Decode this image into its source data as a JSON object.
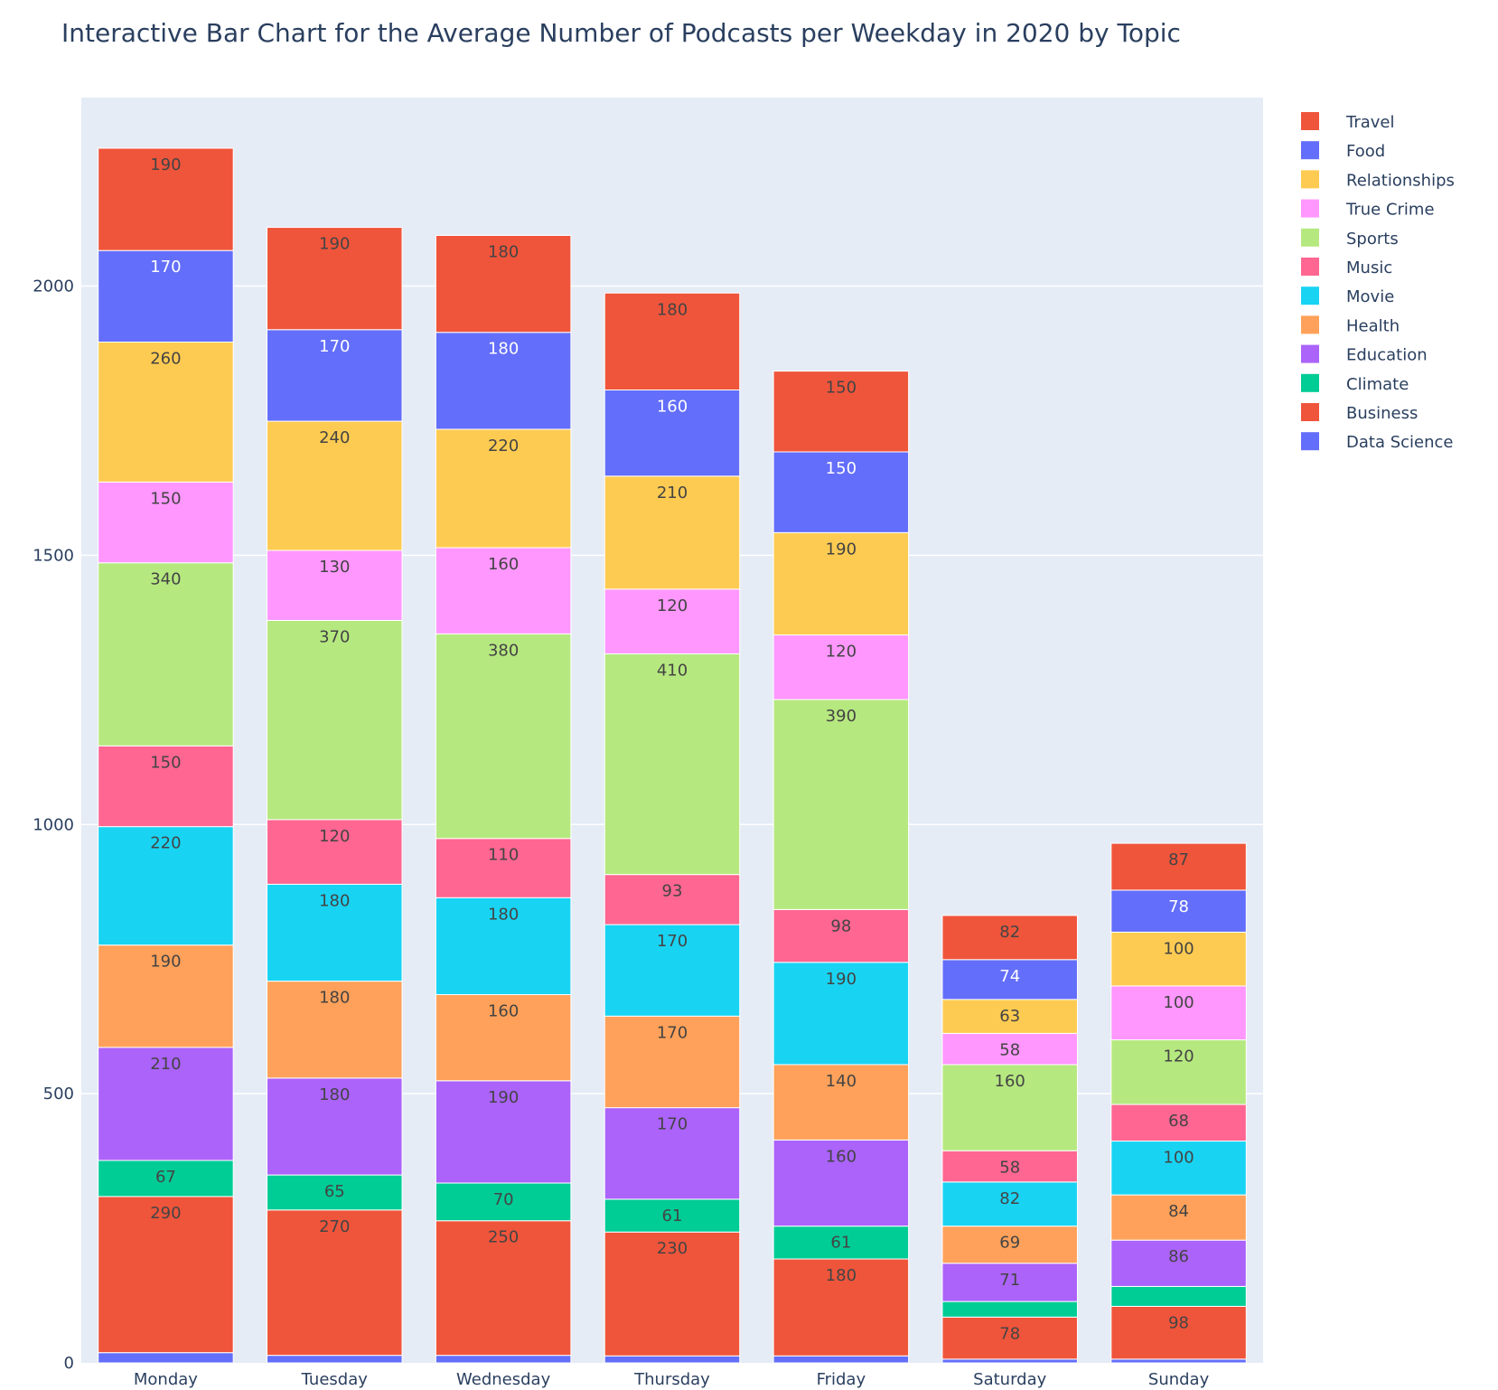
{
  "chart_data": {
    "type": "bar",
    "stacked": true,
    "title": "Interactive Bar Chart for the Average Number of Podcasts per Weekday in 2020 by Topic",
    "xlabel": "",
    "ylabel": "",
    "ylim": [
      0,
      2350
    ],
    "yticks": [
      0,
      500,
      1000,
      1500,
      2000
    ],
    "grid": true,
    "legend_position": "right",
    "categories": [
      "Monday",
      "Tuesday",
      "Wednesday",
      "Thursday",
      "Friday",
      "Saturday",
      "Sunday"
    ],
    "series": [
      {
        "name": "Data Science",
        "color": "#636efa",
        "values": [
          19,
          14,
          14,
          13,
          13,
          7,
          7
        ],
        "show_labels": false
      },
      {
        "name": "Business",
        "color": "#ef553b",
        "values": [
          290,
          270,
          250,
          230,
          180,
          78,
          98
        ],
        "show_labels": true
      },
      {
        "name": "Climate",
        "color": "#00cc96",
        "values": [
          67,
          65,
          70,
          61,
          61,
          29,
          37
        ],
        "labels": [
          "67",
          "65",
          "70",
          "61",
          "61",
          "",
          ""
        ]
      },
      {
        "name": "Education",
        "color": "#ab63fa",
        "values": [
          210,
          180,
          190,
          170,
          160,
          71,
          86
        ],
        "show_labels": true
      },
      {
        "name": "Health",
        "color": "#ffa15a",
        "values": [
          190,
          180,
          160,
          170,
          140,
          69,
          84
        ],
        "show_labels": true
      },
      {
        "name": "Movie",
        "color": "#19d3f3",
        "values": [
          220,
          180,
          180,
          170,
          190,
          82,
          100
        ],
        "show_labels": true
      },
      {
        "name": "Music",
        "color": "#ff6692",
        "values": [
          150,
          120,
          110,
          93,
          98,
          58,
          68
        ],
        "show_labels": true
      },
      {
        "name": "Sports",
        "color": "#b6e880",
        "values": [
          340,
          370,
          380,
          410,
          390,
          160,
          120
        ],
        "show_labels": true
      },
      {
        "name": "True Crime",
        "color": "#ff97ff",
        "values": [
          150,
          130,
          160,
          120,
          120,
          58,
          100
        ],
        "show_labels": true
      },
      {
        "name": "Relationships",
        "color": "#fecb52",
        "values": [
          260,
          240,
          220,
          210,
          190,
          63,
          100
        ],
        "show_labels": true
      },
      {
        "name": "Food",
        "color": "#636efa",
        "values": [
          170,
          170,
          180,
          160,
          150,
          74,
          78
        ],
        "show_labels": true
      },
      {
        "name": "Travel",
        "color": "#ef553b",
        "values": [
          190,
          190,
          180,
          180,
          150,
          82,
          87
        ],
        "show_labels": true
      }
    ],
    "legend_order": [
      "Travel",
      "Food",
      "Relationships",
      "True Crime",
      "Sports",
      "Music",
      "Movie",
      "Health",
      "Education",
      "Climate",
      "Business",
      "Data Science"
    ]
  }
}
